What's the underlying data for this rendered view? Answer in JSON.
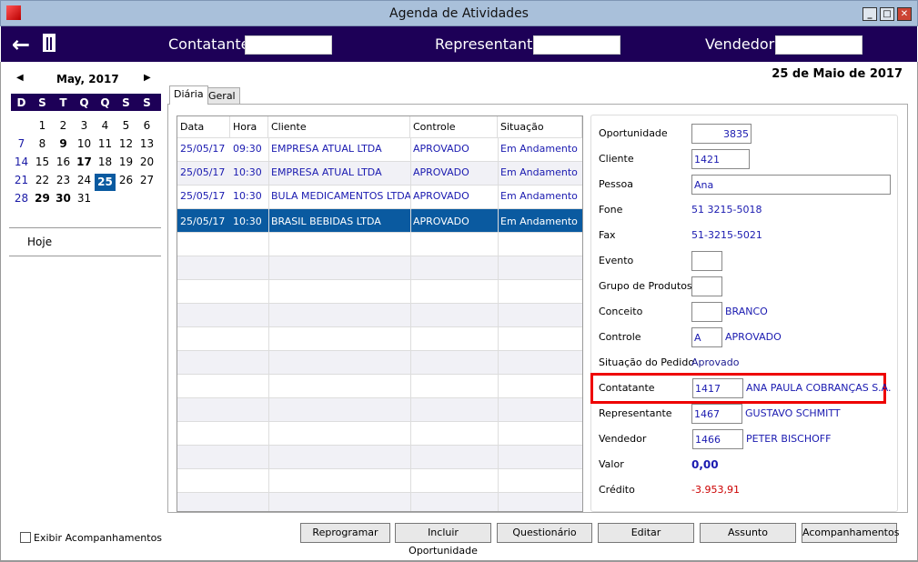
{
  "window": {
    "title": "Agenda de Atividades",
    "controls": [
      "_",
      "□",
      "✕"
    ]
  },
  "toolbar": {
    "back_icon": "arrow-left-icon",
    "trash_icon": "trash-icon",
    "contatante_label": "Contatante",
    "representante_label": "Representante",
    "vendedor_label": "Vendedor",
    "contatante_value": "",
    "representante_value": "",
    "vendedor_value": ""
  },
  "calendar": {
    "month": "May, 2017",
    "prev": "◀",
    "next": "▶",
    "dow": [
      "D",
      "S",
      "T",
      "Q",
      "Q",
      "S",
      "S"
    ],
    "weeks": [
      [
        "",
        "1",
        "2",
        "3",
        "4",
        "5",
        "6"
      ],
      [
        "7",
        "8",
        "9",
        "10",
        "11",
        "12",
        "13"
      ],
      [
        "14",
        "15",
        "16",
        "17",
        "18",
        "19",
        "20"
      ],
      [
        "21",
        "22",
        "23",
        "24",
        "25",
        "26",
        "27"
      ],
      [
        "28",
        "29",
        "30",
        "31",
        "",
        "",
        ""
      ]
    ],
    "bold": [
      "9",
      "17",
      "29",
      "30"
    ],
    "selected": "25",
    "today_label": "Hoje"
  },
  "show_followups": {
    "label": "Exibir Acompanhamentos",
    "checked": false
  },
  "date_heading": "25 de Maio de 2017",
  "tabs": [
    {
      "label": "Diária",
      "active": true
    },
    {
      "label": "Geral",
      "active": false
    }
  ],
  "grid": {
    "columns": [
      "Data",
      "Hora",
      "Cliente",
      "Controle",
      "Situação"
    ],
    "rows": [
      [
        "25/05/17",
        "09:30",
        "EMPRESA ATUAL LTDA",
        "APROVADO",
        "Em Andamento"
      ],
      [
        "25/05/17",
        "10:30",
        "EMPRESA ATUAL LTDA",
        "APROVADO",
        "Em Andamento"
      ],
      [
        "25/05/17",
        "10:30",
        "BULA MEDICAMENTOS LTDA",
        "APROVADO",
        "Em Andamento"
      ],
      [
        "25/05/17",
        "10:30",
        "BRASIL BEBIDAS LTDA",
        "APROVADO",
        "Em Andamento"
      ]
    ],
    "selected_row": 3
  },
  "detail": {
    "oportunidade": {
      "label": "Oportunidade",
      "value": "3835"
    },
    "cliente": {
      "label": "Cliente",
      "value": "1421"
    },
    "pessoa": {
      "label": "Pessoa",
      "value": "Ana"
    },
    "fone": {
      "label": "Fone",
      "value": "51 3215-5018"
    },
    "fax": {
      "label": "Fax",
      "value": "51-3215-5021"
    },
    "evento": {
      "label": "Evento",
      "value": ""
    },
    "grupo": {
      "label": "Grupo de Produtos",
      "value": ""
    },
    "conceito": {
      "label": "Conceito",
      "value": "",
      "desc": "BRANCO"
    },
    "controle": {
      "label": "Controle",
      "value": "A",
      "desc": "APROVADO"
    },
    "situacao": {
      "label": "Situação do Pedido",
      "value": "Aprovado"
    },
    "contatante": {
      "label": "Contatante",
      "value": "1417",
      "desc": "ANA PAULA COBRANÇAS S.A."
    },
    "representante": {
      "label": "Representante",
      "value": "1467",
      "desc": "GUSTAVO SCHMITT"
    },
    "vendedor": {
      "label": "Vendedor",
      "value": "1466",
      "desc": "PETER BISCHOFF"
    },
    "valor": {
      "label": "Valor",
      "value": "0,00"
    },
    "credito": {
      "label": "Crédito",
      "value": "-3.953,91"
    }
  },
  "buttons": [
    "Reprogramar",
    "Incluir Oportunidade",
    "Questionário",
    "Editar",
    "Assunto",
    "Acompanhamentos"
  ],
  "colors": {
    "toolbar": "#1d0057",
    "selection": "#0a5aa0",
    "highlight": "#ee0000",
    "link": "#1a1ab0",
    "negative": "#cc0000"
  }
}
